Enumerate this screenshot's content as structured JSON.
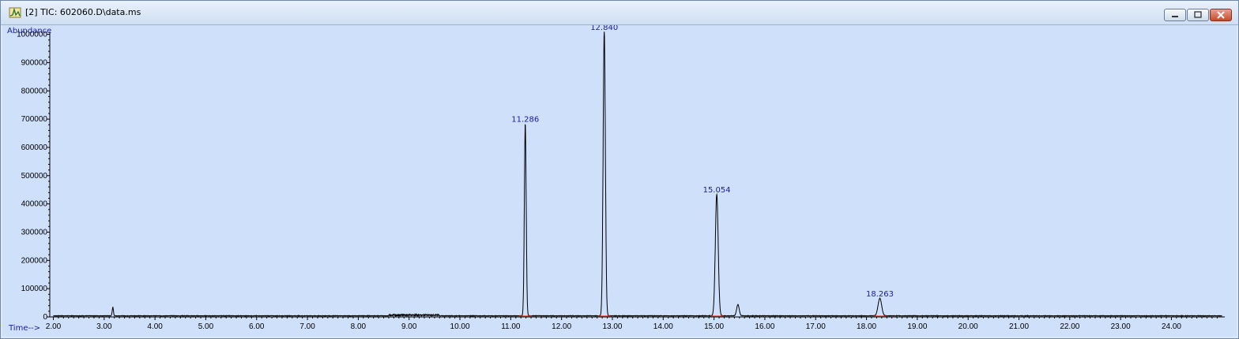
{
  "window": {
    "title": "[2] TIC: 602060.D\\data.ms",
    "icon": "chromatogram-icon",
    "controls": [
      "minimize",
      "restore",
      "close"
    ]
  },
  "colors": {
    "plot_background": "#cfe0fb",
    "trace": "#000000",
    "peak_label": "#1a1aa8",
    "baseline_marker": "#e0302a"
  },
  "chart_data": {
    "type": "line",
    "title": "",
    "xlabel": "Time-->",
    "ylabel": "Abundance",
    "xlim": [
      1.93,
      25.05
    ],
    "ylim": [
      0,
      1010000
    ],
    "x_ticks": [
      "2.00",
      "3.00",
      "4.00",
      "5.00",
      "6.00",
      "7.00",
      "8.00",
      "9.00",
      "10.00",
      "11.00",
      "12.00",
      "13.00",
      "14.00",
      "15.00",
      "16.00",
      "17.00",
      "18.00",
      "19.00",
      "20.00",
      "21.00",
      "22.00",
      "23.00",
      "24.00"
    ],
    "y_ticks": [
      "0",
      "100000",
      "200000",
      "300000",
      "400000",
      "500000",
      "600000",
      "700000",
      "800000",
      "900000",
      "1000000"
    ],
    "grid": false,
    "series": [
      {
        "peaks": [
          {
            "rt": 3.17,
            "height": 30000,
            "width": 0.012
          },
          {
            "rt": 11.286,
            "height": 680000,
            "width": 0.018
          },
          {
            "rt": 12.84,
            "height": 1005000,
            "width": 0.022
          },
          {
            "rt": 15.054,
            "height": 430000,
            "width": 0.028
          },
          {
            "rt": 15.47,
            "height": 40000,
            "width": 0.025
          },
          {
            "rt": 18.263,
            "height": 62000,
            "width": 0.035
          }
        ],
        "baseline": 4000
      }
    ],
    "peak_labels": [
      {
        "rt": 11.286,
        "text": "11.286",
        "height": 680000
      },
      {
        "rt": 12.84,
        "text": "12.840",
        "height": 1005000
      },
      {
        "rt": 15.054,
        "text": "15.054",
        "height": 430000
      },
      {
        "rt": 18.263,
        "text": "18.263",
        "height": 62000
      }
    ]
  }
}
